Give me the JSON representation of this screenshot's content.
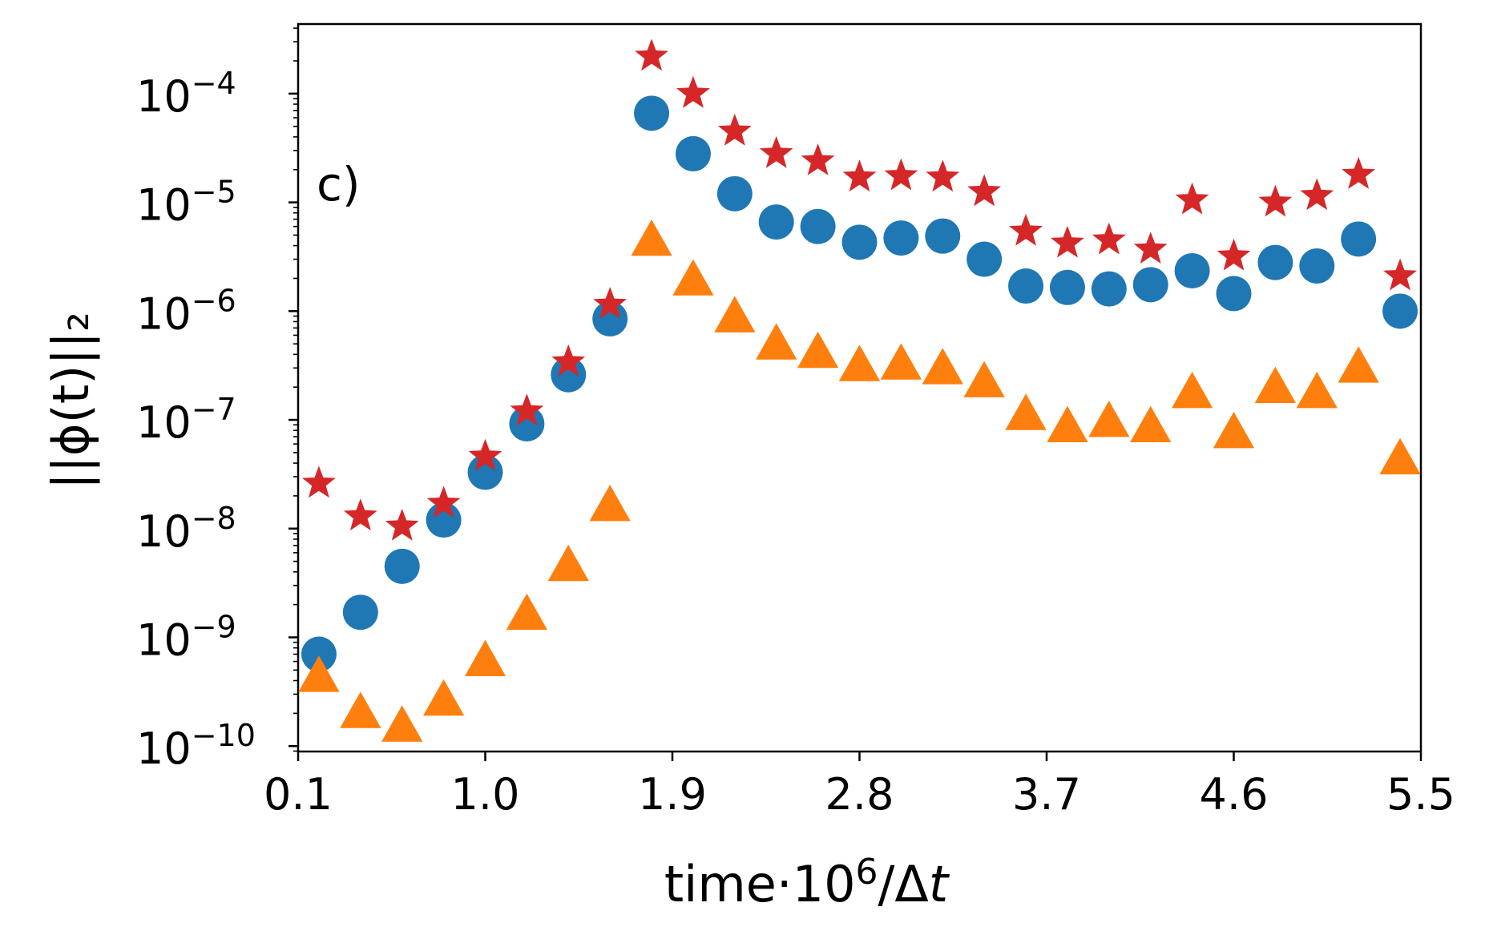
{
  "chart_data": {
    "type": "scatter",
    "title": "",
    "panel_label": "c)",
    "xlabel": {
      "prefix": "time·10",
      "sup": "6",
      "suffix": "/Δ",
      "italic": "t"
    },
    "ylabel": "||ϕ(t)||₂",
    "xlim": [
      0.1,
      5.5
    ],
    "ylim_log10": [
      -10.05,
      -3.36
    ],
    "yscale": "log",
    "x_ticks": [
      0.1,
      1.0,
      1.9,
      2.8,
      3.7,
      4.6,
      5.5
    ],
    "x_tick_labels": [
      "0.1",
      "1.0",
      "1.9",
      "2.8",
      "3.7",
      "4.6",
      "5.5"
    ],
    "y_tick_exponents": [
      -10,
      -9,
      -8,
      -7,
      -6,
      -5,
      -4
    ],
    "y_tick_labels": [
      {
        "base": "10",
        "exp": "−10"
      },
      {
        "base": "10",
        "exp": "−9"
      },
      {
        "base": "10",
        "exp": "−8"
      },
      {
        "base": "10",
        "exp": "−7"
      },
      {
        "base": "10",
        "exp": "−6"
      },
      {
        "base": "10",
        "exp": "−5"
      },
      {
        "base": "10",
        "exp": "−4"
      }
    ],
    "grid": false,
    "x": [
      0.2,
      0.4,
      0.6,
      0.8,
      1.0,
      1.2,
      1.4,
      1.6,
      1.8,
      2.0,
      2.2,
      2.4,
      2.6,
      2.8,
      3.0,
      3.2,
      3.4,
      3.6,
      3.8,
      4.0,
      4.2,
      4.4,
      4.6,
      4.8,
      5.0,
      5.2,
      5.4
    ],
    "series": [
      {
        "name": "circles",
        "marker": "circle",
        "color": "#1f77b4",
        "values": [
          7e-10,
          1.7e-09,
          4.5e-09,
          1.2e-08,
          3.3e-08,
          9.2e-08,
          2.6e-07,
          8.5e-07,
          6.6e-05,
          2.8e-05,
          1.2e-05,
          6.6e-06,
          6e-06,
          4.3e-06,
          4.7e-06,
          4.9e-06,
          3e-06,
          1.7e-06,
          1.65e-06,
          1.6e-06,
          1.75e-06,
          2.35e-06,
          1.45e-06,
          2.8e-06,
          2.6e-06,
          4.6e-06,
          1e-06
        ]
      },
      {
        "name": "stars",
        "marker": "star",
        "color": "#d62728",
        "values": [
          2.6e-08,
          1.3e-08,
          1.05e-08,
          1.7e-08,
          4.6e-08,
          1.2e-07,
          3.4e-07,
          1.15e-06,
          0.00022,
          0.0001,
          4.5e-05,
          2.8e-05,
          2.4e-05,
          1.7e-05,
          1.75e-05,
          1.7e-05,
          1.25e-05,
          5.4e-06,
          4.2e-06,
          4.5e-06,
          3.7e-06,
          1.05e-05,
          3.2e-06,
          1e-05,
          1.15e-05,
          1.8e-05,
          2.1e-06
        ]
      },
      {
        "name": "triangles",
        "marker": "triangle",
        "color": "#ff7f0e",
        "values": [
          4.3e-10,
          2e-10,
          1.5e-10,
          2.6e-10,
          6e-10,
          1.6e-09,
          4.5e-09,
          1.6e-08,
          4.4e-06,
          1.9e-06,
          8.7e-07,
          4.9e-07,
          4.1e-07,
          3.1e-07,
          3.2e-07,
          2.9e-07,
          2.2e-07,
          1.1e-07,
          8.5e-08,
          9.5e-08,
          8.5e-08,
          1.75e-07,
          7.5e-08,
          1.95e-07,
          1.75e-07,
          3e-07,
          4.3e-08
        ]
      }
    ]
  }
}
